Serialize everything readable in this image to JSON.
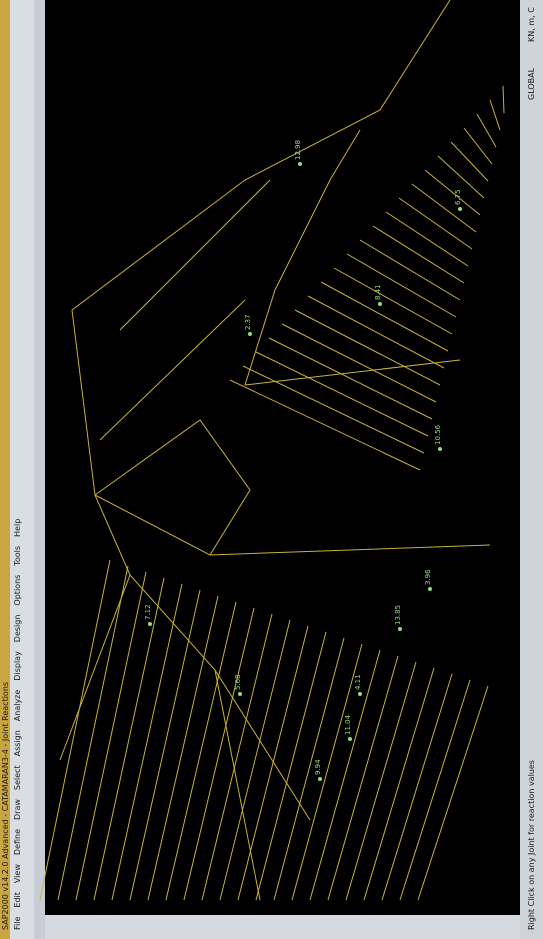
{
  "window": {
    "title": "SAP2000 v14.2.0 Advanced - CATAMARAN3-4 - Joint Reactions",
    "menu": [
      "File",
      "Edit",
      "View",
      "Define",
      "Draw",
      "Select",
      "Assign",
      "Analyze",
      "Display",
      "Design",
      "Options",
      "Tools",
      "Help"
    ]
  },
  "viewport": {
    "reaction_labels": [
      "13.85",
      "3.96",
      "4.11",
      "9.94",
      "11.04",
      "5.68",
      "12.98",
      "6.75",
      "8.41",
      "2.37",
      "10.56",
      "7.12"
    ]
  },
  "status_bar": {
    "hint": "Right Click on any Joint for reaction values",
    "coordinate_system": "GLOBAL",
    "units": "KN, m, C"
  }
}
